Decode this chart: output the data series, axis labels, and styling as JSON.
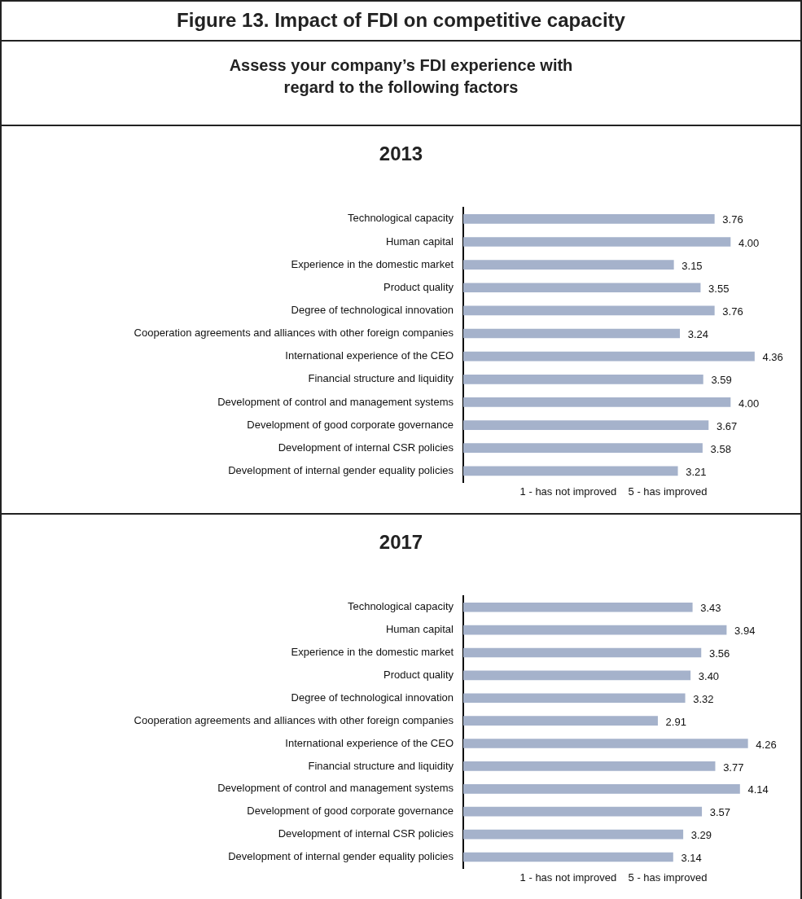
{
  "chart_data": [
    {
      "type": "bar",
      "orientation": "horizontal",
      "title": "2013",
      "annotations": [
        "Figure 13. Impact of FDI on competitive capacity",
        "Assess your company’s FDI experience with regard to the following factors"
      ],
      "xlabel": "1 - has not improved    5 - has improved",
      "categories": [
        "Technological capacity",
        "Human capital",
        "Experience in the domestic market",
        "Product quality",
        "Degree of technological innovation",
        "Cooperation agreements and alliances with other foreign companies",
        "International experience of the CEO",
        "Financial structure and liquidity",
        "Development of control and management systems",
        "Development of good corporate governance",
        "Development of internal CSR policies",
        "Development of internal gender equality policies"
      ],
      "values": [
        3.76,
        4.0,
        3.15,
        3.55,
        3.76,
        3.24,
        4.36,
        3.59,
        4.0,
        3.67,
        3.58,
        3.21
      ],
      "value_labels": [
        "3.76",
        "4.00",
        "3.15",
        "3.55",
        "3.76",
        "3.24",
        "4.36",
        "3.59",
        "4.00",
        "3.67",
        "3.58",
        "3.21"
      ],
      "color": "#a5b2cb",
      "tick_labels": "y",
      "grid": false,
      "legend": false
    },
    {
      "type": "bar",
      "orientation": "horizontal",
      "title": "2017",
      "xlabel": "1 - has not improved    5 - has improved",
      "categories": [
        "Technological capacity",
        "Human capital",
        "Experience in the domestic market",
        "Product quality",
        "Degree of technological innovation",
        "Cooperation agreements and alliances with other foreign companies",
        "International experience of the CEO",
        "Financial structure and liquidity",
        "Development of control and management systems",
        "Development of good corporate governance",
        "Development of internal CSR policies",
        "Development of internal gender equality policies"
      ],
      "values": [
        3.43,
        3.94,
        3.56,
        3.4,
        3.32,
        2.91,
        4.26,
        3.77,
        4.14,
        3.57,
        3.29,
        3.14
      ],
      "value_labels": [
        "3.43",
        "3.94",
        "3.56",
        "3.40",
        "3.32",
        "2.91",
        "4.26",
        "3.77",
        "4.14",
        "3.57",
        "3.29",
        "3.14"
      ],
      "color": "#a5b2cb",
      "tick_labels": "y",
      "grid": false,
      "legend": false
    }
  ]
}
